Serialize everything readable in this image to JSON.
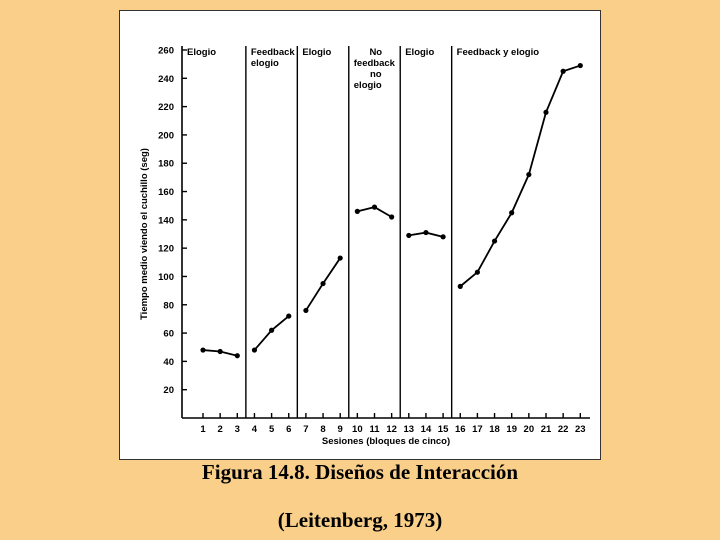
{
  "caption": {
    "title": "Figura 14.8. Diseños de Interacción",
    "source": "(Leitenberg, 1973)"
  },
  "colors": {
    "background": "#f9cf8a",
    "panel": "#ffffff",
    "ink": "#000000"
  },
  "chart_data": {
    "type": "line",
    "title": "",
    "xlabel": "Sesiones (bloques de cinco)",
    "ylabel": "Tiempo medio viendo el cuchillo (seg)",
    "xlim": [
      0,
      24
    ],
    "ylim": [
      0,
      260
    ],
    "yticks": [
      20,
      40,
      60,
      80,
      100,
      120,
      140,
      160,
      180,
      200,
      220,
      240,
      260
    ],
    "xticks": [
      1,
      2,
      3,
      4,
      5,
      6,
      7,
      8,
      9,
      10,
      11,
      12,
      13,
      14,
      15,
      16,
      17,
      18,
      19,
      20,
      21,
      22,
      23
    ],
    "grid": false,
    "phase_boundaries": [
      3.5,
      6.5,
      9.5,
      12.5,
      15.5
    ],
    "phases": [
      {
        "label_lines": [
          "Elogio"
        ],
        "x": [
          1,
          2,
          3
        ],
        "y": [
          48,
          47,
          44
        ]
      },
      {
        "label_lines": [
          "Feedback",
          "elogio"
        ],
        "x": [
          4,
          5,
          6
        ],
        "y": [
          48,
          62,
          72
        ]
      },
      {
        "label_lines": [
          "Elogio"
        ],
        "x": [
          7,
          8,
          9
        ],
        "y": [
          76,
          95,
          113
        ]
      },
      {
        "label_lines": [
          "No",
          "feedback",
          "no",
          "elogio"
        ],
        "x": [
          10,
          11,
          12
        ],
        "y": [
          146,
          149,
          142
        ]
      },
      {
        "label_lines": [
          "Elogio"
        ],
        "x": [
          13,
          14,
          15
        ],
        "y": [
          129,
          131,
          128
        ]
      },
      {
        "label_lines": [
          "Feedback y elogio"
        ],
        "x": [
          16,
          17,
          18,
          19,
          20,
          21,
          22,
          23
        ],
        "y": [
          93,
          103,
          125,
          145,
          172,
          216,
          245,
          249
        ]
      }
    ]
  }
}
